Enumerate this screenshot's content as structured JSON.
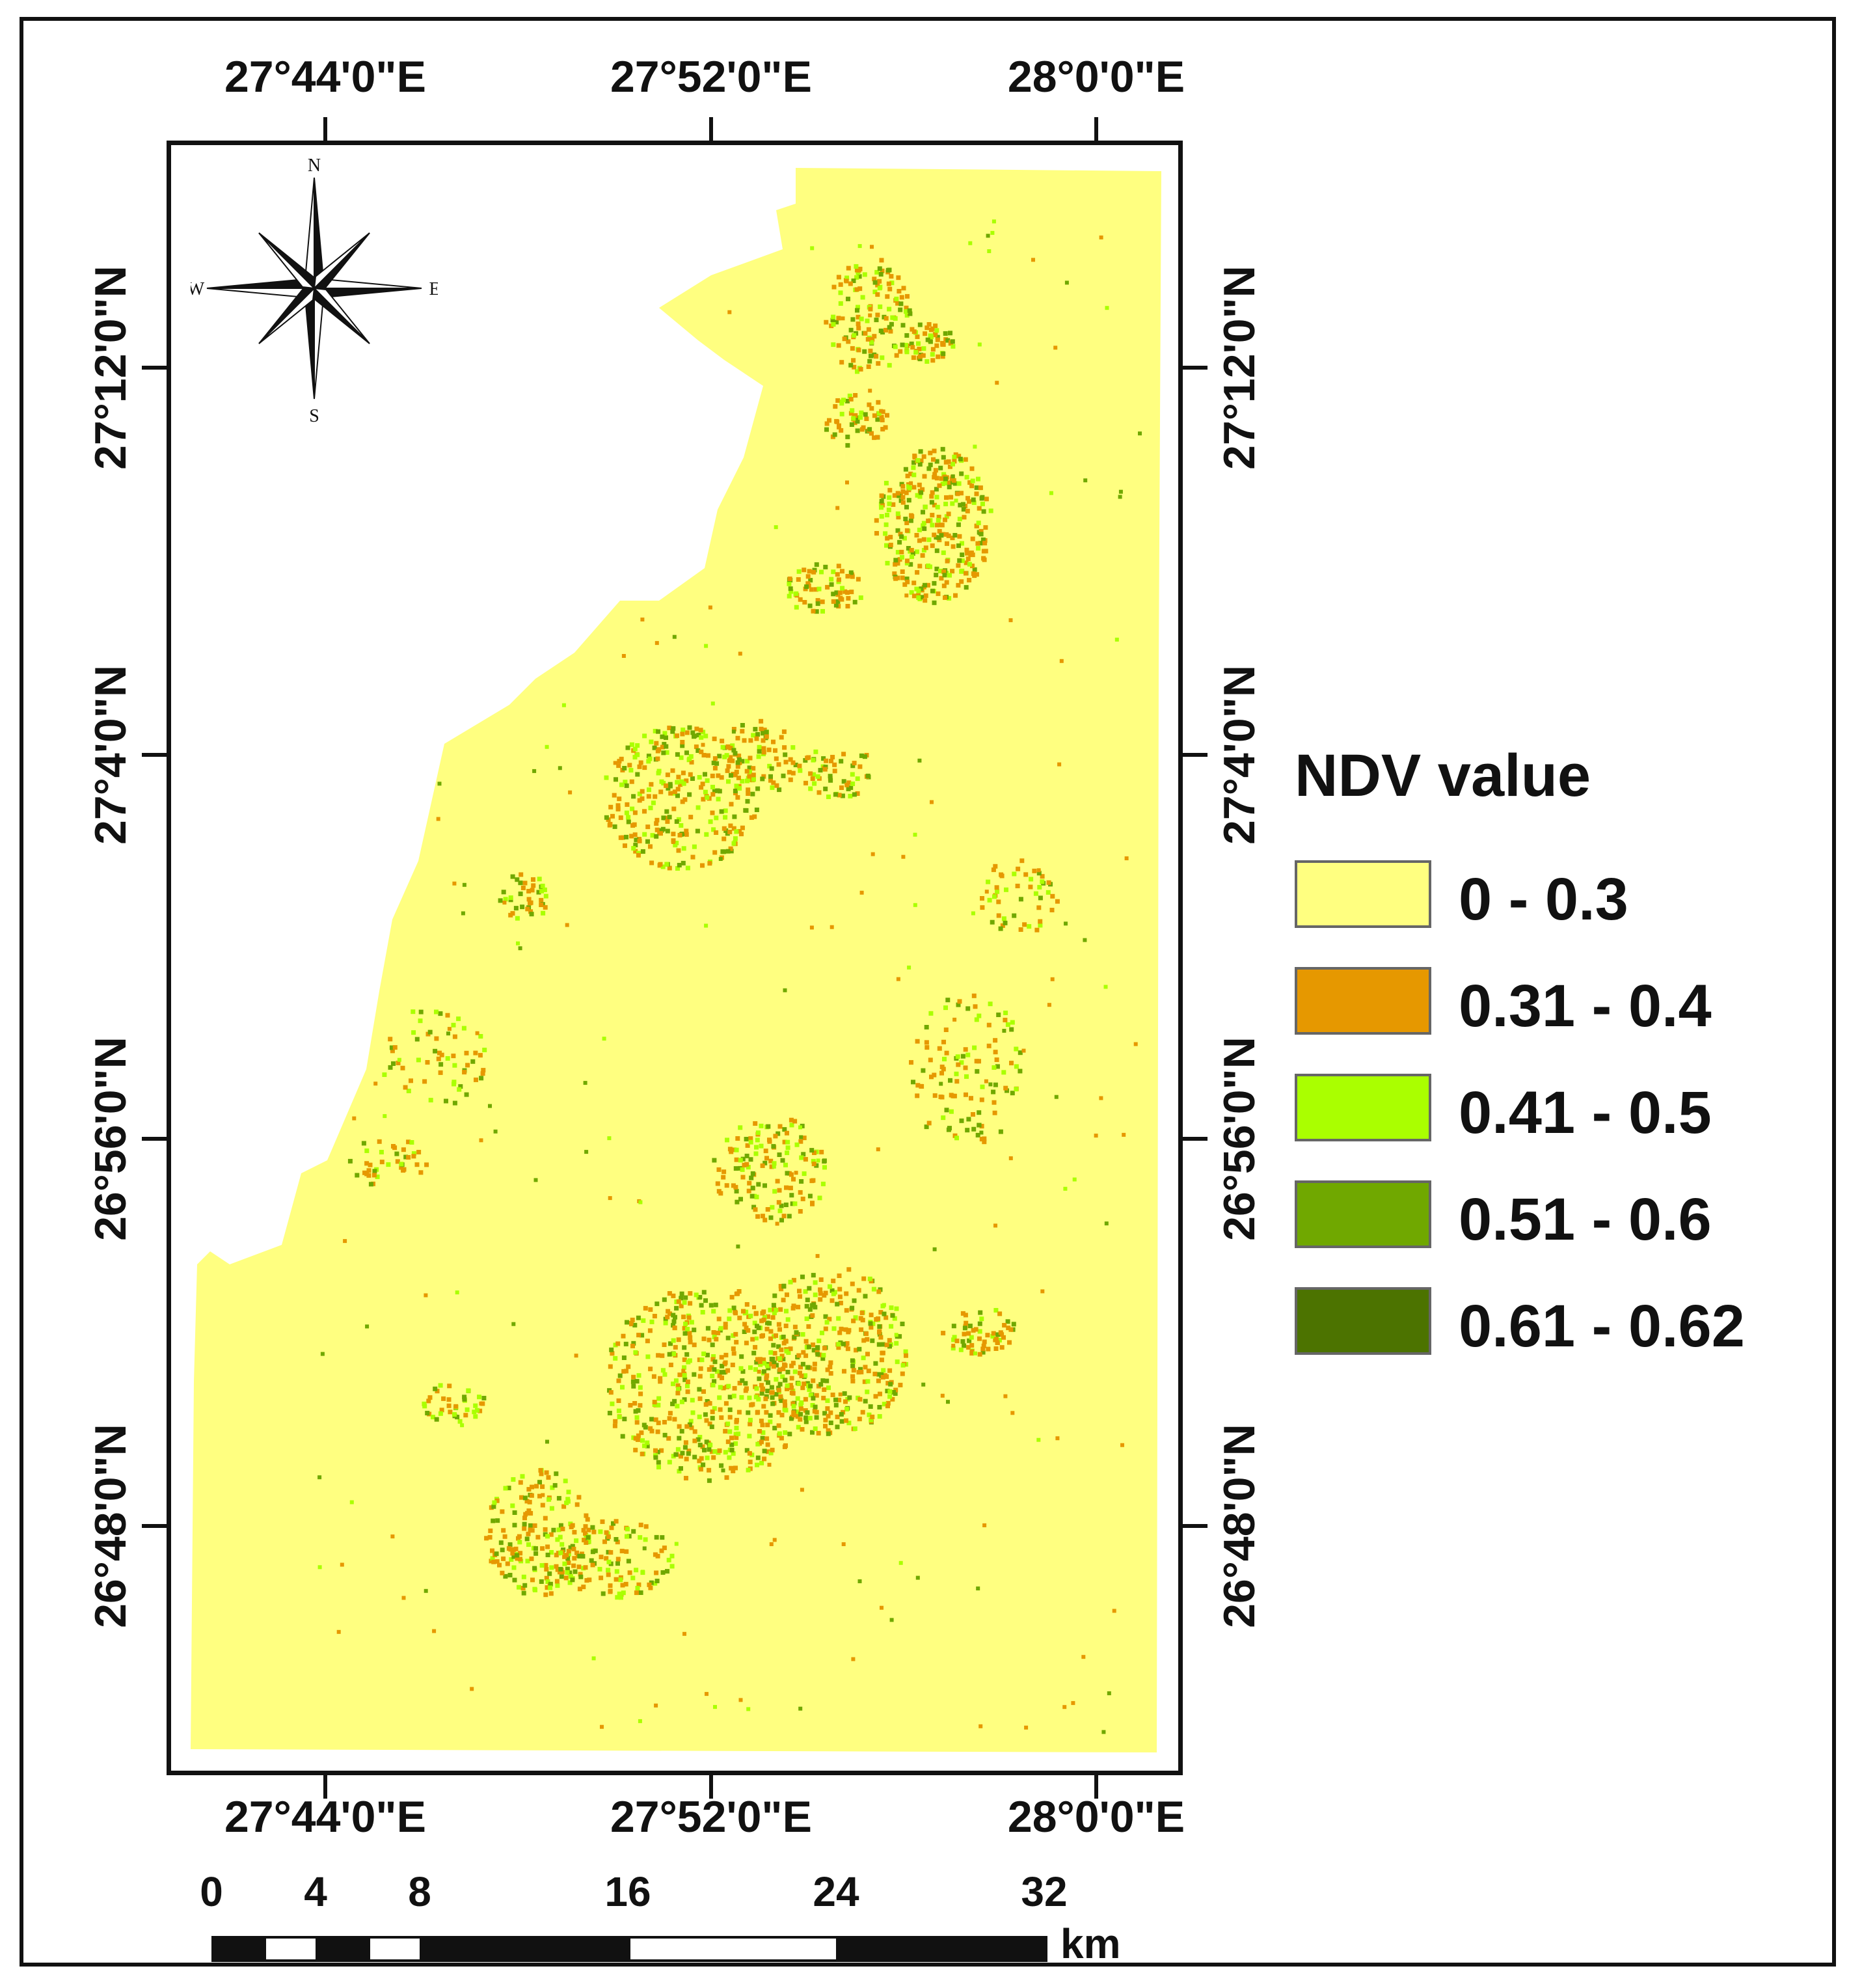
{
  "map": {
    "lon_labels": [
      "27°44'0\"E",
      "27°52'0\"E",
      "28°0'0\"E"
    ],
    "lat_labels": [
      "27°12'0\"N",
      "27°4'0\"N",
      "26°56'0\"N",
      "26°48'0\"N"
    ],
    "compass": {
      "n": "N",
      "s": "S",
      "e": "E",
      "w": "W"
    }
  },
  "legend": {
    "title": "NDV value",
    "items": [
      {
        "label": "0 - 0.3",
        "color": "#FFFF80"
      },
      {
        "label": "0.31 - 0.4",
        "color": "#E69800"
      },
      {
        "label": "0.41 - 0.5",
        "color": "#AAFF00"
      },
      {
        "label": "0.51 - 0.6",
        "color": "#70A800"
      },
      {
        "label": "0.61 - 0.62",
        "color": "#4C7300"
      }
    ]
  },
  "scale": {
    "ticks": [
      "0",
      "4",
      "8",
      "16",
      "24",
      "32"
    ],
    "unit": "km"
  }
}
